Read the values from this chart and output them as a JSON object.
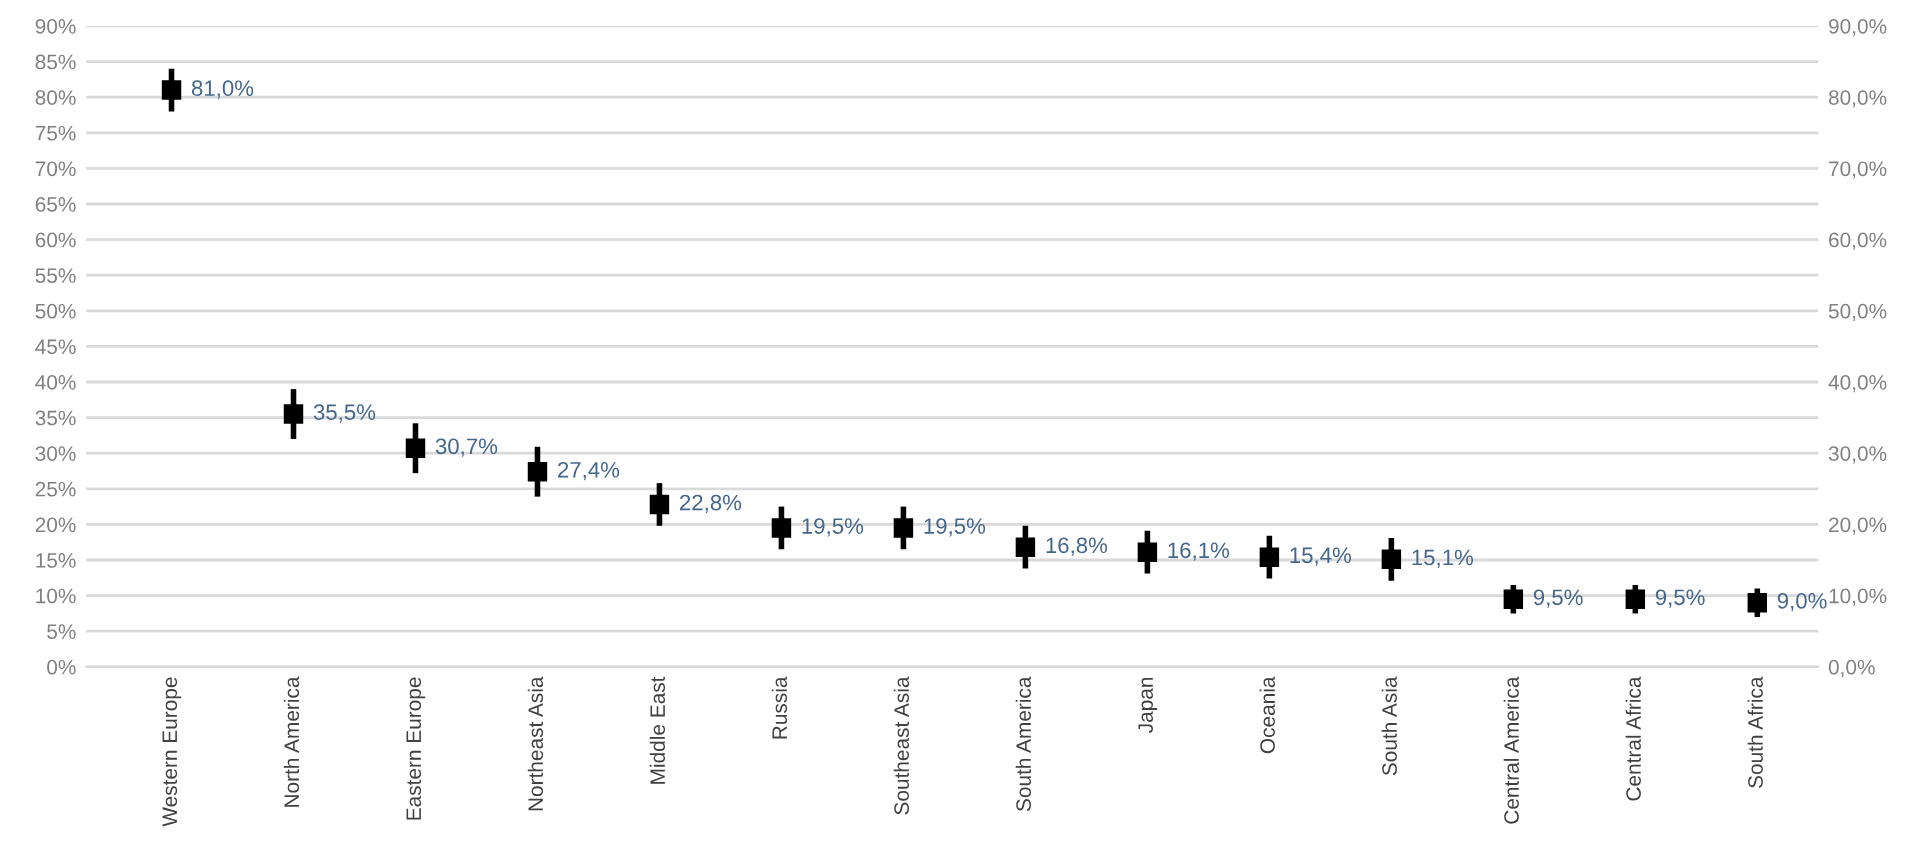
{
  "chart_data": {
    "type": "scatter",
    "categories": [
      "Western Europe",
      "North America",
      "Eastern Europe",
      "Northeast Asia",
      "Middle East",
      "Russia",
      "Southeast Asia",
      "South America",
      "Japan",
      "Oceania",
      "South Asia",
      "Central America",
      "Central Africa",
      "South Africa"
    ],
    "series": [
      {
        "color": "#000000",
        "values": [
          81.0,
          35.5,
          30.7,
          27.4,
          22.8,
          19.5,
          19.5,
          16.8,
          16.1,
          15.4,
          15.1,
          9.5,
          9.5,
          9.0
        ],
        "errors": [
          3,
          3.5,
          3.5,
          3.5,
          3,
          3,
          3,
          3,
          3,
          3,
          3,
          2,
          2,
          2
        ],
        "value_labels": [
          "81,0%",
          "35,5%",
          "30,7%",
          "27,4%",
          "22,8%",
          "19,5%",
          "19,5%",
          "16,8%",
          "16,1%",
          "15,4%",
          "15,1%",
          "9,5%",
          "9,5%",
          "9,0%"
        ]
      }
    ],
    "marker": "square",
    "grid": "y",
    "ylim": [
      0,
      90
    ],
    "yticks": [
      {
        "value": 0,
        "label": "0%"
      },
      {
        "value": 5,
        "label": "5%"
      },
      {
        "value": 10,
        "label": "10%"
      },
      {
        "value": 15,
        "label": "15%"
      },
      {
        "value": 20,
        "label": "20%"
      },
      {
        "value": 25,
        "label": "25%"
      },
      {
        "value": 30,
        "label": "30%"
      },
      {
        "value": 35,
        "label": "35%"
      },
      {
        "value": 40,
        "label": "40%"
      },
      {
        "value": 45,
        "label": "45%"
      },
      {
        "value": 50,
        "label": "50%"
      },
      {
        "value": 55,
        "label": "55%"
      },
      {
        "value": 60,
        "label": "60%"
      },
      {
        "value": 65,
        "label": "65%"
      },
      {
        "value": 70,
        "label": "70%"
      },
      {
        "value": 75,
        "label": "75%"
      },
      {
        "value": 80,
        "label": "80%"
      },
      {
        "value": 85,
        "label": "85%"
      },
      {
        "value": 90,
        "label": "90%"
      }
    ],
    "y2lim": [
      0,
      90
    ],
    "y2ticks": [
      {
        "value": 0,
        "label": "0,0%"
      },
      {
        "value": 10,
        "label": "10,0%"
      },
      {
        "value": 20,
        "label": "20,0%"
      },
      {
        "value": 30,
        "label": "30,0%"
      },
      {
        "value": 40,
        "label": "40,0%"
      },
      {
        "value": 50,
        "label": "50,0%"
      },
      {
        "value": 60,
        "label": "60,0%"
      },
      {
        "value": 70,
        "label": "70,0%"
      },
      {
        "value": 80,
        "label": "80,0%"
      },
      {
        "value": 90,
        "label": "90,0%"
      }
    ]
  }
}
